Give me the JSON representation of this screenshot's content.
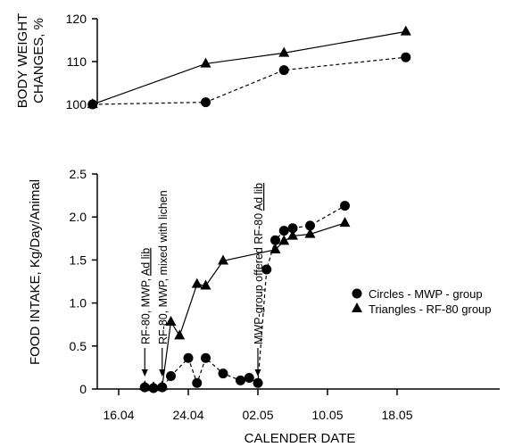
{
  "chart_data": [
    {
      "type": "line",
      "ylabel_lines": [
        "BODY WEIGHT",
        "CHANGES, %"
      ],
      "ylim": [
        100,
        120
      ],
      "yticks": [
        "100",
        "110",
        "120"
      ],
      "grid": false,
      "series": [
        {
          "marker": "triangle",
          "line": "solid",
          "x": [
            "13.04",
            "26.04",
            "05.05",
            "19.05"
          ],
          "y": [
            100,
            109.5,
            112,
            117
          ]
        },
        {
          "marker": "circle",
          "line": "dashed",
          "x": [
            "13.04",
            "26.04",
            "05.05",
            "19.05"
          ],
          "y": [
            100,
            100.5,
            108,
            111
          ]
        }
      ]
    },
    {
      "type": "line",
      "ylabel": "FOOD INTAKE, Kg/Day/Animal",
      "xlabel": "CALENDER DATE",
      "xticks": [
        "16.04",
        "24.04",
        "02.05",
        "10.05",
        "18.05"
      ],
      "yticks": [
        "0",
        "0.5",
        "1.0",
        "1.5",
        "2.0",
        "2.5"
      ],
      "ylim": [
        0,
        2.5
      ],
      "grid": false,
      "legend": {
        "placement": "right",
        "entries": [
          {
            "marker": "circle",
            "label": "Circles  -  MWP - group"
          },
          {
            "marker": "triangle",
            "label": "Triangles - RF-80 group"
          }
        ]
      },
      "annotations": [
        {
          "date": "19.04",
          "lines": [
            "RF-80, MWP, ",
            "Ad lib"
          ],
          "underline_second": true
        },
        {
          "date": "21.04",
          "lines": [
            "RF-80, MWP, mixed with lichen"
          ],
          "underline_second": false
        },
        {
          "date": "02.05",
          "lines": [
            "MWP-group offered RF-80 ",
            "Ad lib"
          ],
          "underline_second": true
        }
      ],
      "series": [
        {
          "name": "Triangles - RF-80 group",
          "marker": "triangle",
          "line": "solid",
          "x": [
            "19.04",
            "20.04",
            "21.04",
            "22.04",
            "23.04",
            "25.04",
            "26.04",
            "28.04",
            "04.05",
            "05.05",
            "06.05",
            "08.05",
            "12.05"
          ],
          "y": [
            0.03,
            0.02,
            0.03,
            0.78,
            0.62,
            1.22,
            1.2,
            1.49,
            1.62,
            1.72,
            1.78,
            1.8,
            1.93
          ]
        },
        {
          "name": "Circles - MWP - group",
          "marker": "circle",
          "line": "dashed",
          "x": [
            "19.04",
            "20.04",
            "21.04",
            "22.04",
            "24.04",
            "25.04",
            "26.04",
            "28.04",
            "30.04",
            "01.05",
            "02.05",
            "03.05",
            "04.05",
            "05.05",
            "06.05",
            "08.05",
            "12.05"
          ],
          "y": [
            0.02,
            0.01,
            0.02,
            0.15,
            0.36,
            0.07,
            0.36,
            0.18,
            0.1,
            0.13,
            0.07,
            1.39,
            1.73,
            1.84,
            1.87,
            1.9,
            2.13
          ]
        }
      ]
    }
  ]
}
